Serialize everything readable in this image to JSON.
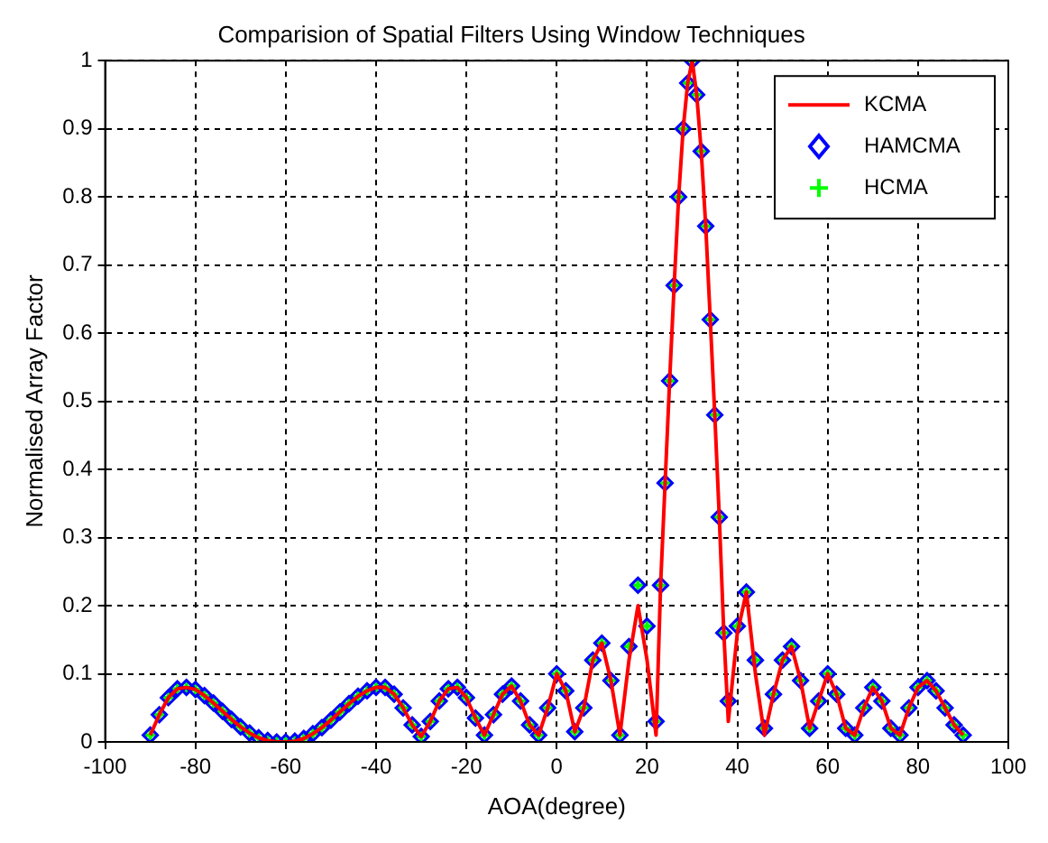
{
  "chart_data": {
    "type": "line",
    "title": "Comparision of Spatial Filters Using Window Techniques",
    "xlabel": "AOA(degree)",
    "ylabel": "Normalised Array Factor",
    "x": [
      -90,
      -88,
      -86,
      -84,
      -82,
      -80,
      -78,
      -76,
      -74,
      -72,
      -70,
      -68,
      -66,
      -64,
      -62,
      -60,
      -58,
      -56,
      -54,
      -52,
      -50,
      -48,
      -46,
      -44,
      -42,
      -40,
      -38,
      -36,
      -34,
      -32,
      -30,
      -28,
      -26,
      -24,
      -22,
      -20,
      -18,
      -16,
      -14,
      -12,
      -10,
      -8,
      -6,
      -4,
      -2,
      0,
      2,
      4,
      6,
      8,
      10,
      12,
      14,
      16,
      18,
      20,
      22,
      23,
      24,
      25,
      26,
      27,
      28,
      29,
      30,
      31,
      32,
      33,
      34,
      35,
      36,
      37,
      38,
      40,
      42,
      44,
      46,
      48,
      50,
      52,
      54,
      56,
      58,
      60,
      62,
      64,
      66,
      68,
      70,
      72,
      74,
      76,
      78,
      80,
      82,
      84,
      86,
      88,
      90
    ],
    "series": [
      {
        "name": "KCMA",
        "type": "line",
        "color": "#ff0000",
        "marker": "none",
        "line_style": "solid",
        "values": [
          0.01,
          0.04,
          0.065,
          0.078,
          0.08,
          0.077,
          0.068,
          0.057,
          0.045,
          0.033,
          0.022,
          0.013,
          0.006,
          0.002,
          0.0,
          0.0,
          0.001,
          0.005,
          0.012,
          0.021,
          0.032,
          0.044,
          0.056,
          0.067,
          0.075,
          0.08,
          0.08,
          0.07,
          0.05,
          0.025,
          0.008,
          0.03,
          0.06,
          0.078,
          0.08,
          0.065,
          0.035,
          0.01,
          0.04,
          0.07,
          0.082,
          0.06,
          0.025,
          0.01,
          0.05,
          0.1,
          0.075,
          0.015,
          0.05,
          0.12,
          0.145,
          0.09,
          0.01,
          0.12,
          0.2,
          0.12,
          0.01,
          0.23,
          0.38,
          0.53,
          0.67,
          0.8,
          0.9,
          0.967,
          1.0,
          0.95,
          0.867,
          0.757,
          0.62,
          0.48,
          0.33,
          0.16,
          0.03,
          0.16,
          0.22,
          0.1,
          0.01,
          0.07,
          0.12,
          0.14,
          0.09,
          0.02,
          0.06,
          0.1,
          0.07,
          0.02,
          0.01,
          0.05,
          0.08,
          0.06,
          0.02,
          0.01,
          0.05,
          0.08,
          0.09,
          0.075,
          0.05,
          0.025,
          0.01
        ]
      },
      {
        "name": "HAMCMA",
        "type": "scatter",
        "color": "#0000ff",
        "marker": "diamond",
        "values": [
          0.01,
          0.04,
          0.065,
          0.078,
          0.08,
          0.077,
          0.068,
          0.057,
          0.045,
          0.033,
          0.022,
          0.013,
          0.006,
          0.002,
          0.0,
          0.0,
          0.001,
          0.005,
          0.012,
          0.021,
          0.032,
          0.044,
          0.056,
          0.067,
          0.075,
          0.08,
          0.08,
          0.07,
          0.05,
          0.025,
          0.008,
          0.03,
          0.06,
          0.078,
          0.08,
          0.065,
          0.035,
          0.01,
          0.04,
          0.07,
          0.082,
          0.06,
          0.025,
          0.01,
          0.05,
          0.1,
          0.075,
          0.015,
          0.05,
          0.12,
          0.145,
          0.09,
          0.01,
          0.14,
          0.23,
          0.17,
          0.03,
          0.23,
          0.38,
          0.53,
          0.67,
          0.8,
          0.9,
          0.967,
          1.0,
          0.95,
          0.867,
          0.757,
          0.62,
          0.48,
          0.33,
          0.16,
          0.06,
          0.17,
          0.22,
          0.12,
          0.02,
          0.07,
          0.12,
          0.14,
          0.09,
          0.02,
          0.06,
          0.1,
          0.07,
          0.02,
          0.01,
          0.05,
          0.08,
          0.06,
          0.02,
          0.01,
          0.05,
          0.08,
          0.09,
          0.075,
          0.05,
          0.025,
          0.01
        ]
      },
      {
        "name": "HCMA",
        "type": "scatter",
        "color": "#00ff00",
        "marker": "cross",
        "values": [
          0.01,
          0.04,
          0.065,
          0.078,
          0.08,
          0.077,
          0.068,
          0.057,
          0.045,
          0.033,
          0.022,
          0.013,
          0.006,
          0.002,
          0.0,
          0.0,
          0.001,
          0.005,
          0.012,
          0.021,
          0.032,
          0.044,
          0.056,
          0.067,
          0.075,
          0.08,
          0.08,
          0.07,
          0.05,
          0.025,
          0.008,
          0.03,
          0.06,
          0.078,
          0.08,
          0.065,
          0.035,
          0.01,
          0.04,
          0.07,
          0.082,
          0.06,
          0.025,
          0.01,
          0.05,
          0.1,
          0.075,
          0.015,
          0.05,
          0.12,
          0.145,
          0.09,
          0.01,
          0.14,
          0.23,
          0.17,
          0.03,
          0.23,
          0.38,
          0.53,
          0.67,
          0.8,
          0.9,
          0.967,
          1.0,
          0.95,
          0.867,
          0.757,
          0.62,
          0.48,
          0.33,
          0.16,
          0.06,
          0.17,
          0.22,
          0.12,
          0.02,
          0.07,
          0.12,
          0.14,
          0.09,
          0.02,
          0.06,
          0.1,
          0.07,
          0.02,
          0.01,
          0.05,
          0.08,
          0.06,
          0.02,
          0.01,
          0.05,
          0.08,
          0.09,
          0.075,
          0.05,
          0.025,
          0.01
        ]
      }
    ],
    "xlim": [
      -100,
      100
    ],
    "xticks": [
      -100,
      -80,
      -60,
      -40,
      -20,
      0,
      20,
      40,
      60,
      80,
      100
    ],
    "ylim": [
      0,
      1
    ],
    "yticks": [
      0,
      0.1,
      0.2,
      0.3,
      0.4,
      0.5,
      0.6,
      0.7,
      0.8,
      0.9,
      1
    ],
    "grid": true,
    "legend": "top right"
  }
}
